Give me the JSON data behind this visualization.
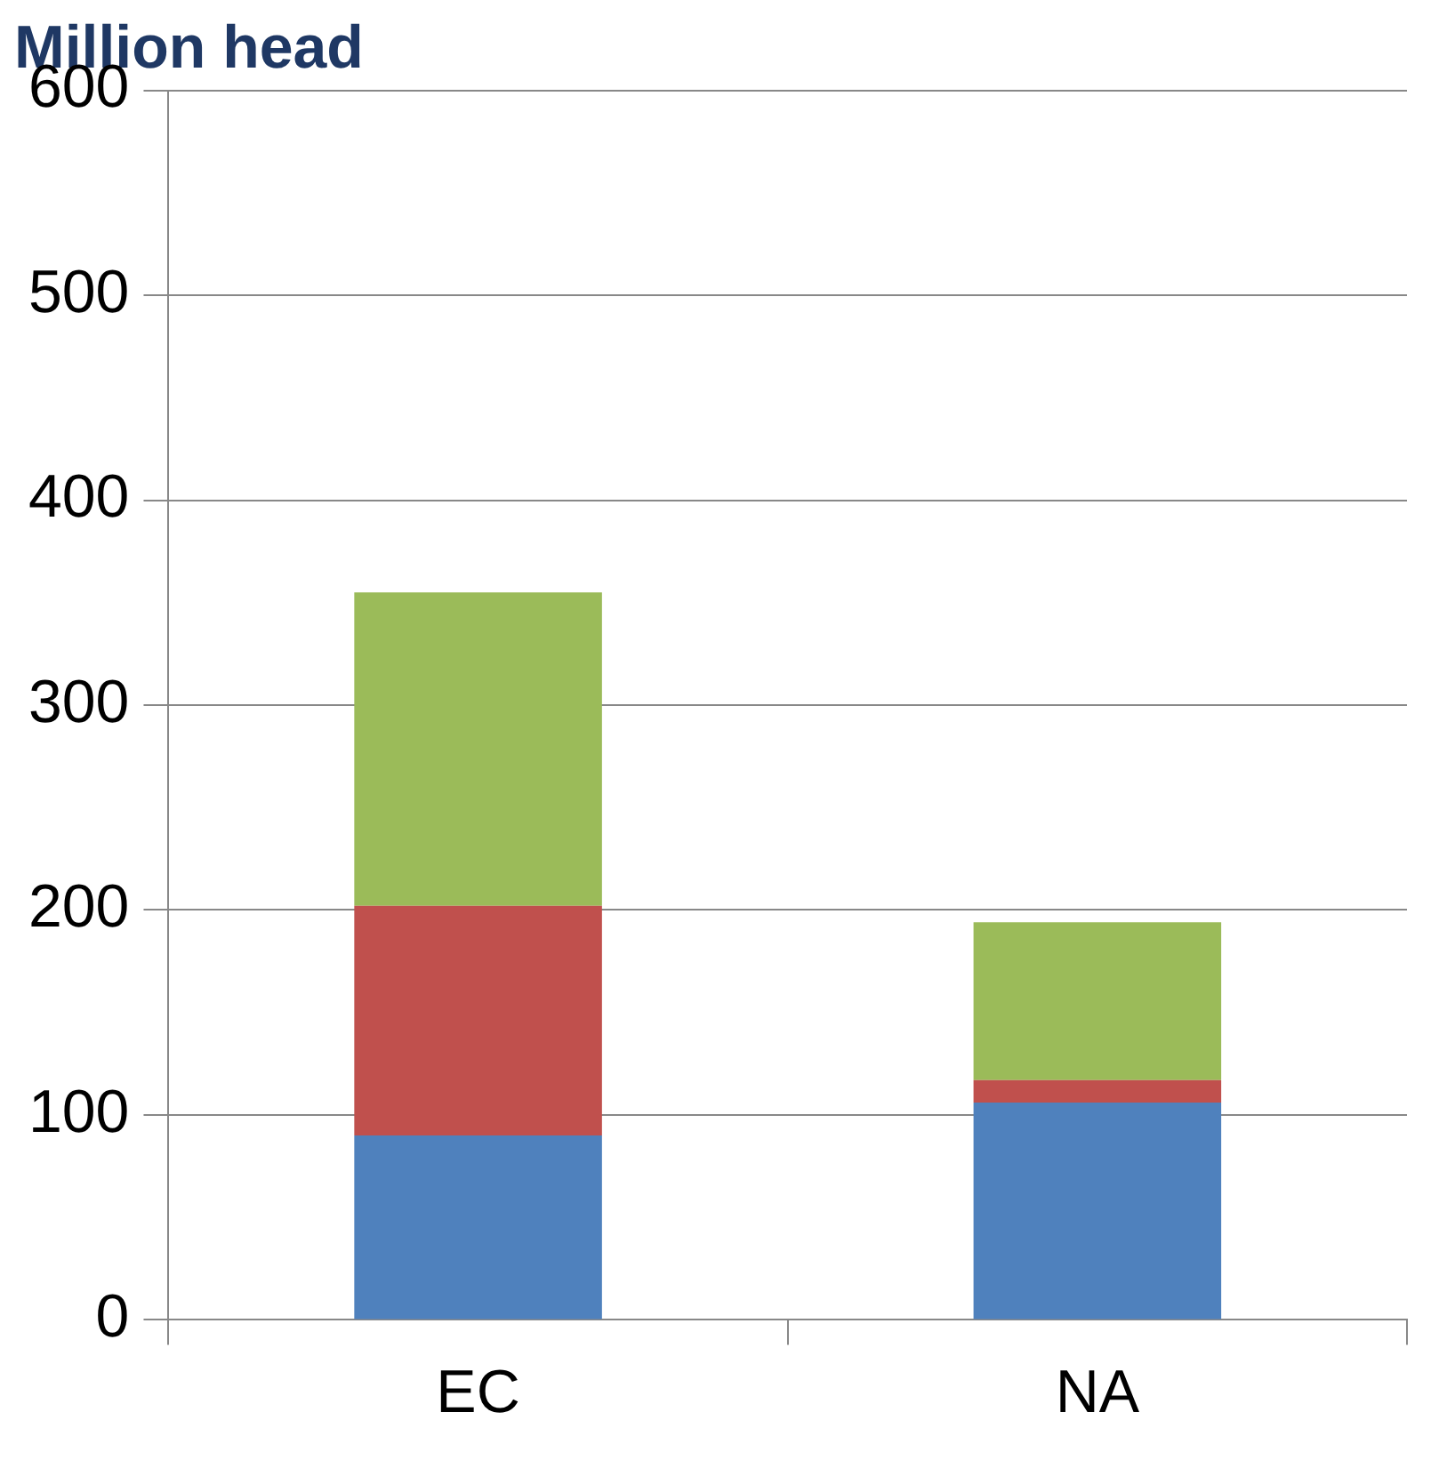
{
  "chart_data": {
    "type": "bar",
    "ylabel": "Million head",
    "categories": [
      "EC",
      "NA"
    ],
    "stacked": true,
    "series": [
      {
        "color": "#4f81bd",
        "values": [
          90,
          106
        ]
      },
      {
        "color": "#c0504d",
        "values": [
          112,
          11
        ]
      },
      {
        "color": "#9bbb59",
        "values": [
          153,
          77
        ]
      }
    ],
    "ylim": [
      0,
      600
    ],
    "yticks": [
      0,
      100,
      200,
      300,
      400,
      500,
      600
    ],
    "grid": "y",
    "legend": false
  }
}
